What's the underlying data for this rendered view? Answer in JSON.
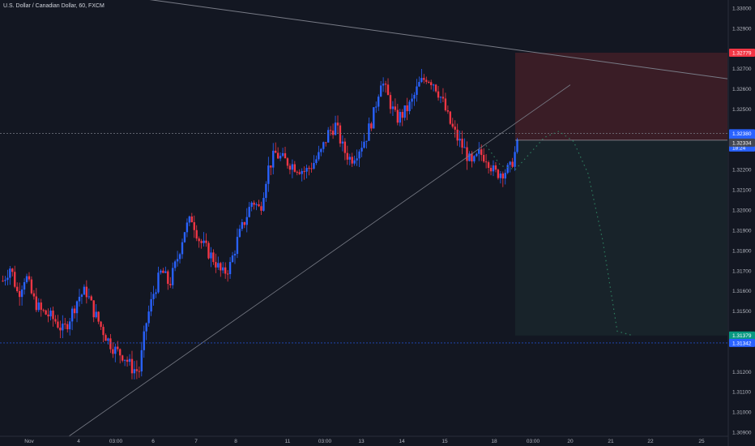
{
  "header": {
    "title": "U.S. Dollar / Canadian Dollar, 60, FXCM"
  },
  "colors": {
    "background": "#131722",
    "up": "#2962ff",
    "down": "#f23645",
    "grid": "#1e222d",
    "axis_text": "#b2b5be",
    "trendline": "#787b86",
    "stop_zone": "#3a1d26",
    "target_zone": "#18232a",
    "projection": "#2e7d5f"
  },
  "chart_data": {
    "type": "candlestick",
    "title": "U.S. Dollar / Canadian Dollar, 60, FXCM",
    "symbol": "USDCAD",
    "timeframe": "60",
    "y_ticks": [
      "1.33000",
      "1.32900",
      "1.32779",
      "1.32700",
      "1.32600",
      "1.32500",
      "1.32380",
      "1.32346",
      "18:24",
      "1.32334",
      "1.32200",
      "1.32100",
      "1.32000",
      "1.31900",
      "1.31800",
      "1.31700",
      "1.31600",
      "1.31500",
      "1.31379",
      "1.31342",
      "1.31200",
      "1.31100",
      "1.31000",
      "1.30900"
    ],
    "y_ticks_plain": [
      1.33,
      1.329,
      1.327,
      1.326,
      1.325,
      1.322,
      1.321,
      1.32,
      1.319,
      1.318,
      1.317,
      1.316,
      1.315,
      1.312,
      1.311,
      1.31,
      1.309
    ],
    "y_range": [
      1.3088,
      1.3304
    ],
    "x_ticks": [
      "Nov",
      "4",
      "03:00",
      "6",
      "7",
      "8",
      "11",
      "03:00",
      "13",
      "14",
      "15",
      "18",
      "03:00",
      "20",
      "21",
      "22",
      "25"
    ],
    "candle_anchors": [
      1.3165,
      1.3172,
      1.3158,
      1.3168,
      1.3156,
      1.315,
      1.3148,
      1.3145,
      1.314,
      1.3148,
      1.3157,
      1.316,
      1.315,
      1.3142,
      1.3135,
      1.313,
      1.3128,
      1.3122,
      1.312,
      1.3145,
      1.316,
      1.317,
      1.3163,
      1.3175,
      1.319,
      1.3196,
      1.3185,
      1.318,
      1.3175,
      1.3168,
      1.3172,
      1.3185,
      1.3195,
      1.3205,
      1.32,
      1.322,
      1.3228,
      1.3225,
      1.3223,
      1.3221,
      1.3219,
      1.3223,
      1.3228,
      1.3238,
      1.3242,
      1.323,
      1.3225,
      1.323,
      1.3236,
      1.3247,
      1.3265,
      1.3255,
      1.3245,
      1.3248,
      1.3253,
      1.3262,
      1.3266,
      1.3263,
      1.3255,
      1.3244,
      1.3236,
      1.323,
      1.3222,
      1.3228,
      1.3226,
      1.3218,
      1.3219,
      1.322,
      1.3232
    ],
    "candle_count": 216,
    "levels": [
      {
        "label": "1.32779",
        "value": 1.32779,
        "color": "#f23645"
      },
      {
        "label": "1.32380",
        "value": 1.3238,
        "color": "#2962ff"
      },
      {
        "label": "1.32346",
        "value": 1.32346,
        "color": "#2962ff"
      },
      {
        "label": "18:24",
        "value": 1.3231,
        "color": "#2962ff"
      },
      {
        "label": "1.32334",
        "value": 1.32334,
        "color": "#434651"
      },
      {
        "label": "1.31379",
        "value": 1.31379,
        "color": "#089981"
      },
      {
        "label": "1.31342",
        "value": 1.31342,
        "color": "#2962ff"
      }
    ],
    "stop_zone": {
      "top": 1.32779,
      "bottom": 1.32346
    },
    "target_zone": {
      "top": 1.32346,
      "bottom": 1.31379
    },
    "trendlines": [
      {
        "name": "falling",
        "from": 1.3305,
        "to": 1.3265
      },
      {
        "name": "rising",
        "from": 1.3088,
        "to": 1.3262
      }
    ],
    "projection_path": [
      1.3232,
      1.3222,
      1.322,
      1.3228,
      1.3236,
      1.3239,
      1.3234,
      1.3218,
      1.3185,
      1.314,
      1.3138
    ],
    "dashed_levels": [
      1.3238,
      1.31342
    ],
    "grid": false,
    "legend": "none"
  }
}
